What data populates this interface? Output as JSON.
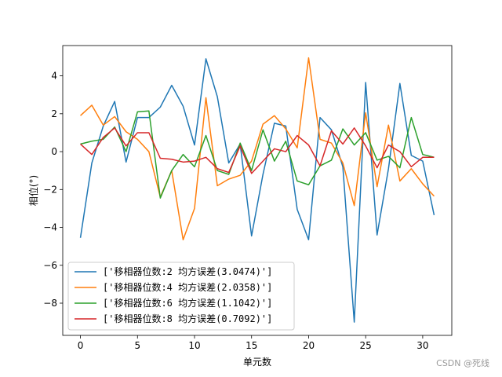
{
  "chart_data": {
    "type": "line",
    "title": "",
    "xlabel": "单元数",
    "ylabel": "相位(°)",
    "xlim": [
      -1.55,
      32.55
    ],
    "ylim": [
      -9.7,
      5.6
    ],
    "xticks": [
      0,
      5,
      10,
      15,
      20,
      25,
      30
    ],
    "yticks": [
      -8,
      -6,
      -4,
      -2,
      0,
      2,
      4
    ],
    "grid": false,
    "legend_position": "lower-left",
    "x": [
      0,
      1,
      2,
      3,
      4,
      5,
      6,
      7,
      8,
      9,
      10,
      11,
      12,
      13,
      14,
      15,
      16,
      17,
      18,
      19,
      20,
      21,
      22,
      23,
      24,
      25,
      26,
      27,
      28,
      29,
      30,
      31
    ],
    "series": [
      {
        "name": "['移相器位数:2  均方误差(3.0474)']",
        "color": "#1f77b4",
        "values": [
          -4.55,
          -0.6,
          1.35,
          2.65,
          -0.55,
          1.8,
          1.8,
          2.35,
          3.5,
          2.4,
          0.35,
          4.9,
          2.9,
          -0.6,
          0.4,
          -4.45,
          -1.2,
          1.5,
          1.35,
          -3.05,
          -4.65,
          1.8,
          1.15,
          -0.8,
          -9.0,
          3.65,
          -4.4,
          -0.9,
          3.6,
          -0.2,
          -0.5,
          -3.35
        ]
      },
      {
        "name": "['移相器位数:4  均方误差(2.0358)']",
        "color": "#ff7f0e",
        "values": [
          1.9,
          2.45,
          1.4,
          1.85,
          1.05,
          0.65,
          0.0,
          -2.4,
          -1.0,
          -4.65,
          -3.0,
          2.85,
          -1.8,
          -1.45,
          -1.25,
          -0.5,
          1.45,
          1.9,
          1.2,
          0.2,
          4.95,
          0.65,
          0.45,
          -0.6,
          -2.85,
          2.05,
          -1.85,
          1.4,
          -1.55,
          -0.9,
          -1.7,
          -2.35
        ]
      },
      {
        "name": "['移相器位数:6  均方误差(1.1042)']",
        "color": "#2ca02c",
        "values": [
          0.4,
          0.55,
          0.65,
          1.3,
          0.0,
          2.1,
          2.15,
          -2.45,
          -1.0,
          -0.15,
          -0.8,
          0.85,
          -1.0,
          -1.2,
          0.45,
          -1.0,
          1.15,
          -0.5,
          0.55,
          -1.55,
          -1.75,
          -0.75,
          -0.45,
          1.2,
          0.35,
          1.0,
          -0.45,
          -0.25,
          -0.85,
          1.8,
          -0.15,
          -0.3
        ]
      },
      {
        "name": "['移相器位数:8  均方误差(0.7092)']",
        "color": "#d62728",
        "values": [
          0.4,
          -0.15,
          0.75,
          1.25,
          0.3,
          1.0,
          1.0,
          -0.35,
          -0.4,
          -0.55,
          -0.5,
          -0.3,
          -0.9,
          -1.1,
          0.3,
          -1.15,
          -0.5,
          0.15,
          0.0,
          0.85,
          0.35,
          -0.75,
          1.1,
          0.4,
          1.25,
          0.3,
          -0.85,
          0.35,
          0.0,
          -0.8,
          -0.3,
          -0.3
        ]
      }
    ]
  },
  "watermark": "CSDN @死线"
}
